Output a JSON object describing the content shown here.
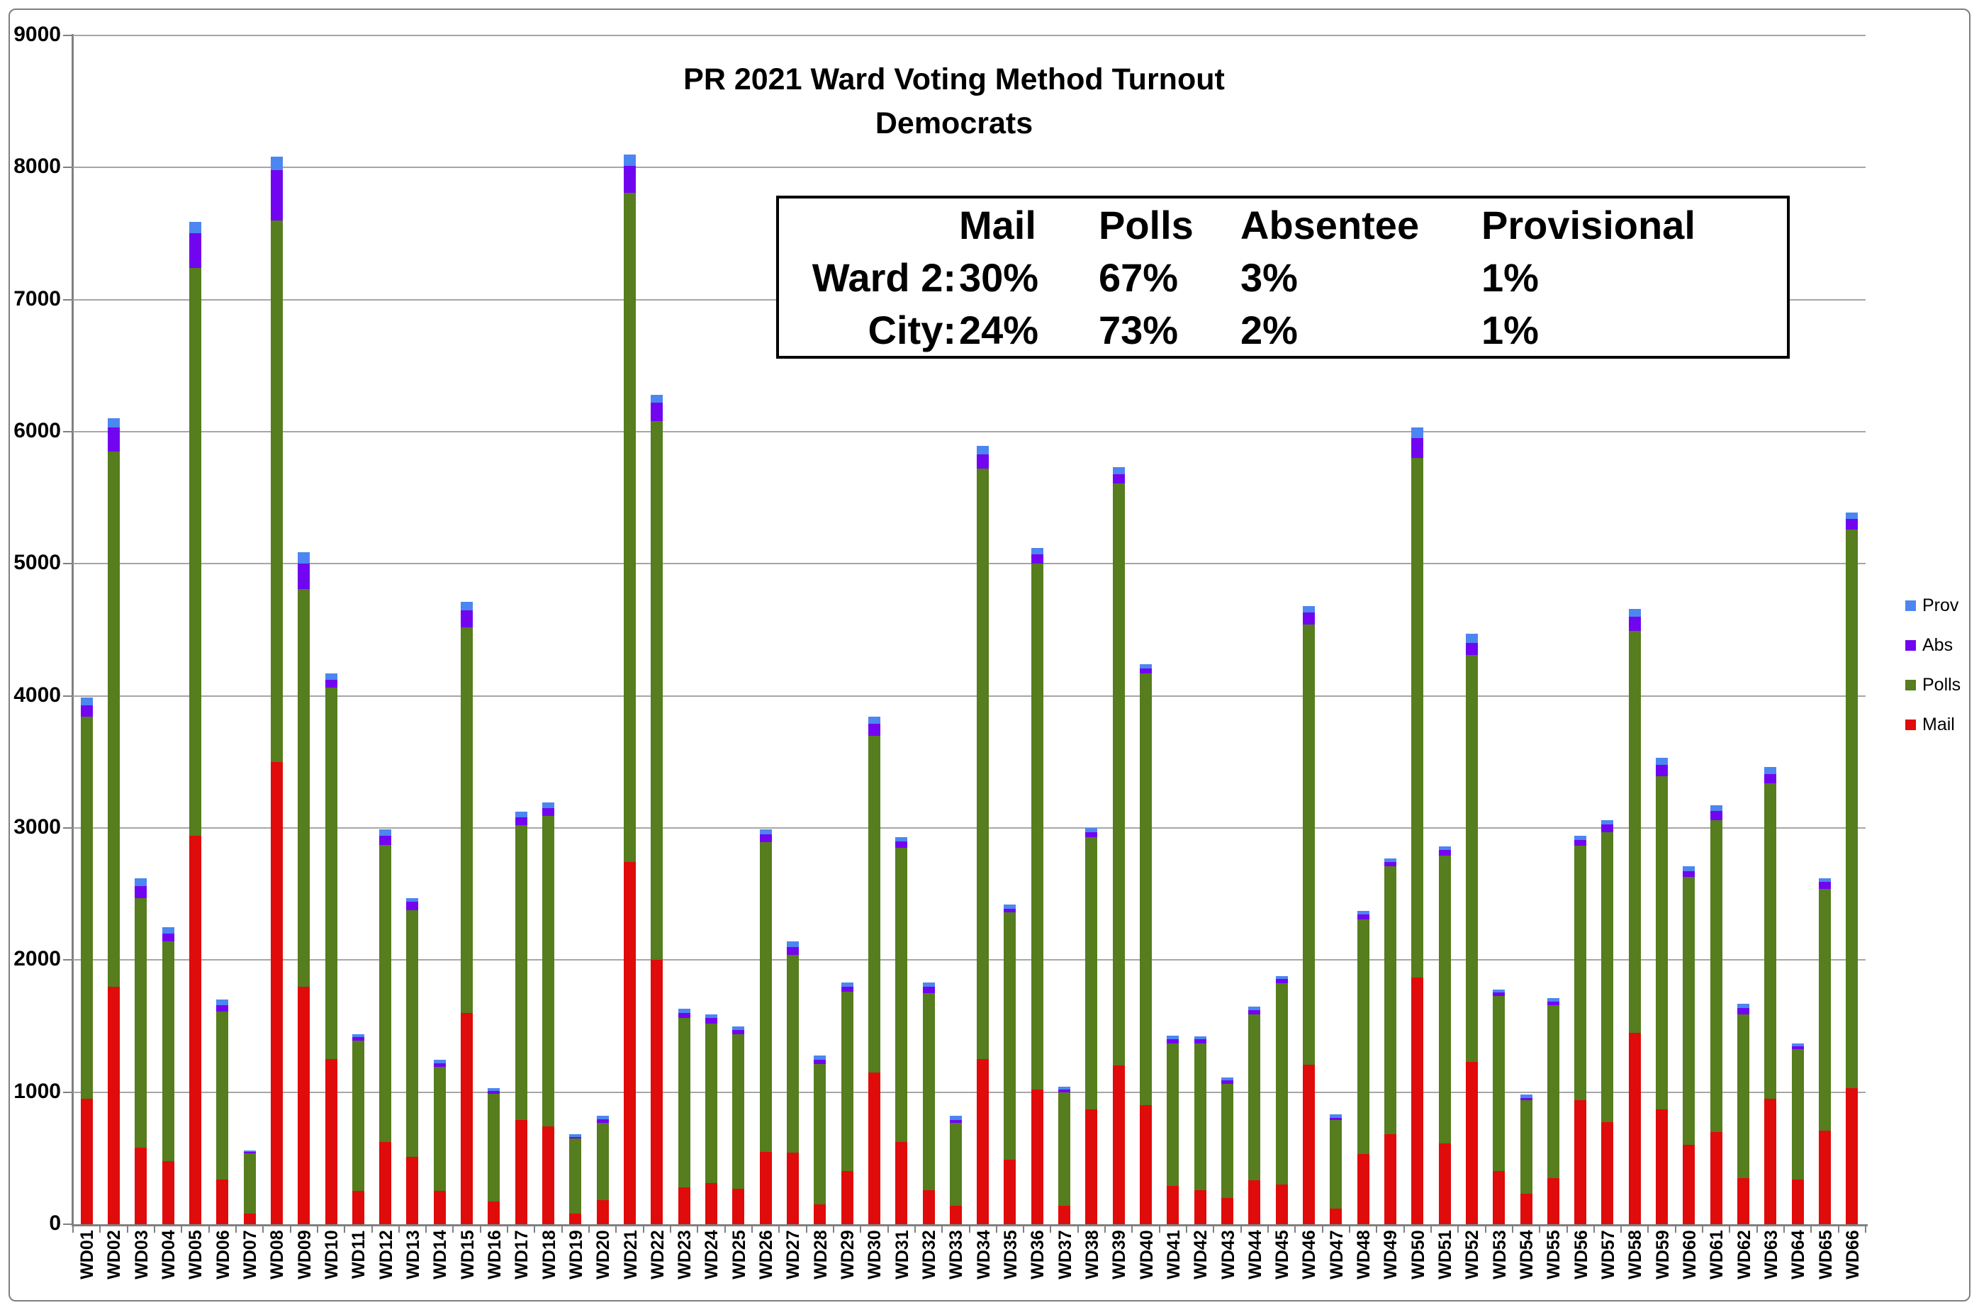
{
  "title": {
    "line1": "PR 2021 Ward Voting Method Turnout",
    "line2": "Democrats"
  },
  "stats_box": {
    "headers": [
      "Mail",
      "Polls",
      "Absentee",
      "Provisional"
    ],
    "rows": [
      {
        "label": "Ward 2:",
        "values": [
          "30%",
          "67%",
          "3%",
          "1%"
        ]
      },
      {
        "label": "City:",
        "values": [
          "24%",
          "73%",
          "2%",
          "1%"
        ]
      }
    ]
  },
  "legend": [
    {
      "label": "Prov",
      "color": "#4c86f0"
    },
    {
      "label": "Abs",
      "color": "#7205f0"
    },
    {
      "label": "Polls",
      "color": "#567d1e"
    },
    {
      "label": "Mail",
      "color": "#e00b0b"
    }
  ],
  "colors": {
    "mail": "#e00b0b",
    "polls": "#567d1e",
    "abs": "#7205f0",
    "prov": "#4c86f0",
    "gridline": "#a6a6a6",
    "axis": "#808080"
  },
  "chart_data": {
    "type": "bar",
    "stacked": true,
    "title": "PR 2021 Ward Voting Method Turnout — Democrats",
    "xlabel": "",
    "ylabel": "",
    "ylim": [
      0,
      9000
    ],
    "y_step": 1000,
    "grid": true,
    "legend_position": "right",
    "categories": [
      "WD01",
      "WD02",
      "WD03",
      "WD04",
      "WD05",
      "WD06",
      "WD07",
      "WD08",
      "WD09",
      "WD10",
      "WD11",
      "WD12",
      "WD13",
      "WD14",
      "WD15",
      "WD16",
      "WD17",
      "WD18",
      "WD19",
      "WD20",
      "WD21",
      "WD22",
      "WD23",
      "WD24",
      "WD25",
      "WD26",
      "WD27",
      "WD28",
      "WD29",
      "WD30",
      "WD31",
      "WD32",
      "WD33",
      "WD34",
      "WD35",
      "WD36",
      "WD37",
      "WD38",
      "WD39",
      "WD40",
      "WD41",
      "WD42",
      "WD43",
      "WD44",
      "WD45",
      "WD46",
      "WD47",
      "WD48",
      "WD49",
      "WD50",
      "WD51",
      "WD52",
      "WD53",
      "WD54",
      "WD55",
      "WD56",
      "WD57",
      "WD58",
      "WD59",
      "WD60",
      "WD61",
      "WD62",
      "WD63",
      "WD64",
      "WD65",
      "WD66"
    ],
    "series": [
      {
        "name": "Mail",
        "color": "#e00b0b",
        "values": [
          950,
          1800,
          580,
          480,
          2940,
          340,
          80,
          3500,
          1800,
          1250,
          250,
          620,
          510,
          250,
          1600,
          170,
          790,
          740,
          80,
          180,
          2740,
          2000,
          280,
          310,
          270,
          550,
          540,
          150,
          400,
          1150,
          620,
          260,
          140,
          1250,
          490,
          1020,
          140,
          870,
          1200,
          900,
          290,
          260,
          200,
          330,
          300,
          1210,
          120,
          530,
          680,
          1870,
          610,
          1230,
          400,
          230,
          350,
          940,
          770,
          1450,
          870,
          600,
          700,
          350,
          950,
          340,
          710,
          1030
        ]
      },
      {
        "name": "Polls",
        "color": "#567d1e",
        "values": [
          2890,
          4050,
          1890,
          1660,
          4300,
          1270,
          455,
          4100,
          3010,
          2810,
          1140,
          2250,
          1870,
          940,
          2920,
          820,
          2230,
          2350,
          570,
          590,
          5070,
          4080,
          1280,
          1210,
          1170,
          2340,
          1500,
          1065,
          1360,
          2550,
          2230,
          1490,
          630,
          4470,
          1870,
          3980,
          860,
          2060,
          4410,
          3270,
          1080,
          1110,
          860,
          1260,
          1525,
          3330,
          670,
          1780,
          2030,
          3930,
          2180,
          3080,
          1330,
          710,
          1310,
          1925,
          2200,
          3040,
          2520,
          2030,
          2360,
          1240,
          2390,
          985,
          1830,
          4230
        ]
      },
      {
        "name": "Abs",
        "color": "#7205f0",
        "values": [
          90,
          180,
          90,
          60,
          260,
          50,
          10,
          380,
          190,
          60,
          25,
          70,
          60,
          30,
          130,
          20,
          60,
          60,
          10,
          25,
          200,
          140,
          40,
          40,
          30,
          60,
          60,
          30,
          40,
          90,
          50,
          50,
          20,
          110,
          30,
          70,
          20,
          40,
          70,
          40,
          30,
          30,
          30,
          30,
          30,
          90,
          15,
          35,
          35,
          150,
          45,
          90,
          25,
          15,
          25,
          45,
          55,
          110,
          90,
          45,
          70,
          45,
          70,
          20,
          50,
          80
        ]
      },
      {
        "name": "Prov",
        "color": "#4c86f0",
        "values": [
          60,
          70,
          60,
          50,
          90,
          40,
          15,
          100,
          90,
          50,
          25,
          50,
          30,
          25,
          60,
          20,
          45,
          45,
          20,
          25,
          90,
          60,
          30,
          30,
          25,
          40,
          40,
          30,
          30,
          50,
          30,
          30,
          30,
          60,
          30,
          50,
          20,
          30,
          50,
          30,
          25,
          20,
          20,
          30,
          25,
          50,
          25,
          25,
          25,
          80,
          25,
          70,
          20,
          25,
          25,
          30,
          35,
          60,
          50,
          35,
          40,
          35,
          50,
          25,
          30,
          50
        ]
      }
    ],
    "y_tick_labels": [
      "0",
      "1000",
      "2000",
      "3000",
      "4000",
      "5000",
      "6000",
      "7000",
      "8000",
      "9000"
    ]
  }
}
